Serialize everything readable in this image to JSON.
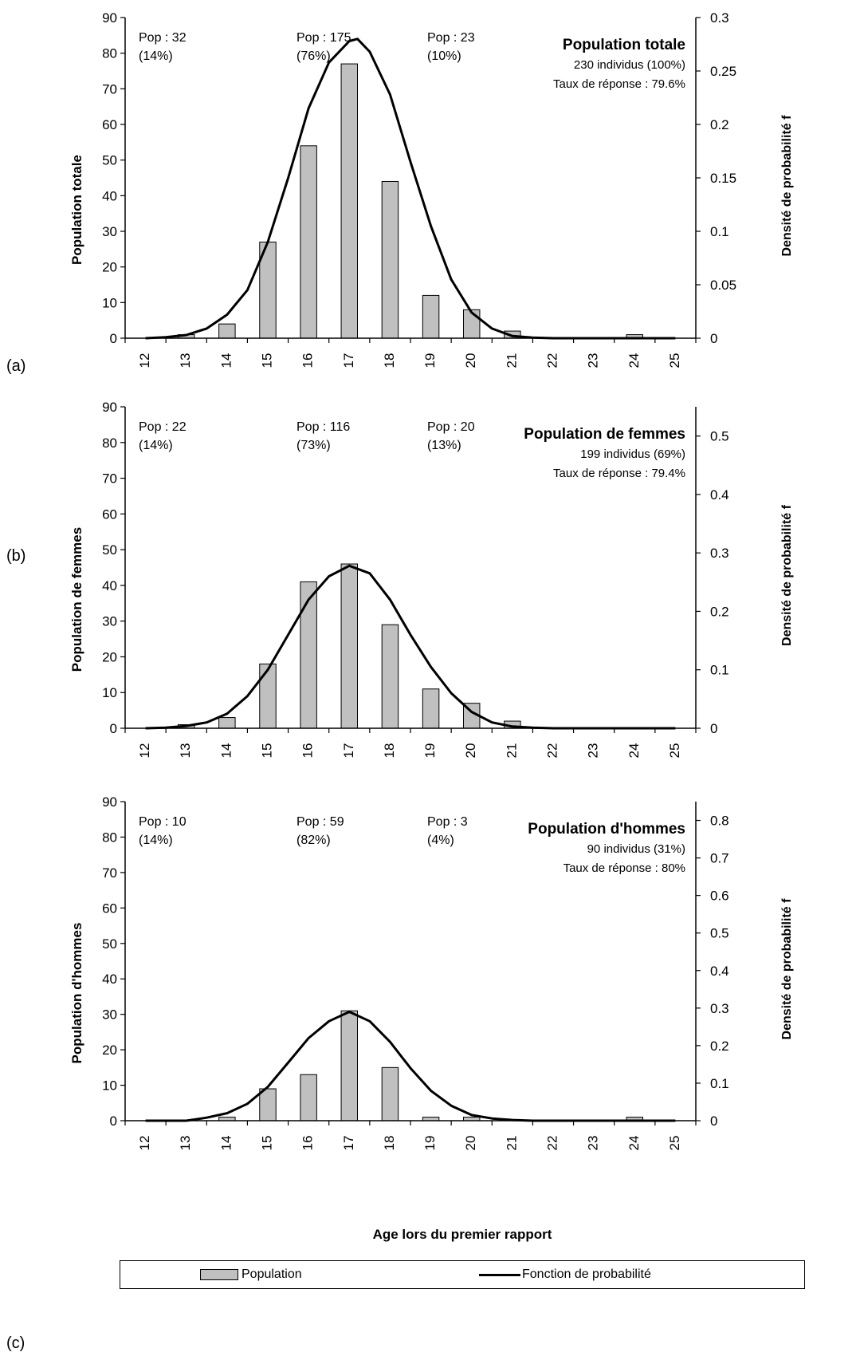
{
  "xlabel": "Age lors du premier rapport",
  "legend": {
    "bar_label": "Population",
    "line_label": "Fonction de probabilité"
  },
  "colors": {
    "bar_fill": "#c0c0c0",
    "bar_stroke": "#000000",
    "line": "#000000"
  },
  "chart_data": [
    {
      "type": "bar",
      "panel_label": "(a)",
      "categories": [
        "12",
        "13",
        "14",
        "15",
        "16",
        "17",
        "18",
        "19",
        "20",
        "21",
        "22",
        "23",
        "24",
        "25"
      ],
      "series": [
        {
          "name": "Population",
          "values": [
            0,
            1,
            4,
            27,
            54,
            77,
            44,
            12,
            8,
            2,
            0,
            0,
            1,
            0
          ]
        },
        {
          "name": "Fonction de probabilité",
          "axis": "right",
          "x": [
            12,
            12.5,
            13,
            13.5,
            14,
            14.5,
            15,
            15.5,
            16,
            16.5,
            17,
            17.2,
            17.5,
            18,
            18.5,
            19,
            19.5,
            20,
            20.5,
            21,
            21.5,
            22,
            23,
            24,
            25
          ],
          "values": [
            0,
            0.001,
            0.003,
            0.009,
            0.022,
            0.045,
            0.09,
            0.15,
            0.215,
            0.258,
            0.278,
            0.28,
            0.268,
            0.228,
            0.165,
            0.105,
            0.055,
            0.024,
            0.009,
            0.002,
            0.0005,
            0,
            0,
            0,
            0
          ]
        }
      ],
      "ylabel": "Population totale",
      "y2label": "Densité de probabilité f",
      "ylim": [
        0,
        90
      ],
      "y2lim": [
        0,
        0.3
      ],
      "yticks": [
        0,
        10,
        20,
        30,
        40,
        50,
        60,
        70,
        80,
        90
      ],
      "y2ticks": [
        "0",
        "0.05",
        "0.1",
        "0.15",
        "0.2",
        "0.25",
        "0.3"
      ],
      "annotations": [
        {
          "line1": "Pop : 32",
          "line2": "(14%)"
        },
        {
          "line1": "Pop : 175",
          "line2": "(76%)"
        },
        {
          "line1": "Pop : 23",
          "line2": "(10%)"
        }
      ],
      "info": {
        "title": "Population totale",
        "count": "230 individus (100%)",
        "rate": "Taux de réponse : 79.6%"
      }
    },
    {
      "type": "bar",
      "panel_label": "(b)",
      "categories": [
        "12",
        "13",
        "14",
        "15",
        "16",
        "17",
        "18",
        "19",
        "20",
        "21",
        "22",
        "23",
        "24",
        "25"
      ],
      "series": [
        {
          "name": "Population",
          "values": [
            0,
            1,
            3,
            18,
            41,
            46,
            29,
            11,
            7,
            2,
            0,
            0,
            0,
            0
          ]
        },
        {
          "name": "Fonction de probabilité",
          "axis": "right",
          "x": [
            12,
            12.5,
            13,
            13.5,
            14,
            14.5,
            15,
            15.5,
            16,
            16.5,
            17,
            17.5,
            18,
            18.5,
            19,
            19.5,
            20,
            20.5,
            21,
            21.5,
            22,
            23,
            24,
            25
          ],
          "values": [
            0,
            0.001,
            0.004,
            0.01,
            0.025,
            0.055,
            0.1,
            0.16,
            0.22,
            0.26,
            0.278,
            0.265,
            0.22,
            0.16,
            0.105,
            0.06,
            0.028,
            0.01,
            0.003,
            0.001,
            0,
            0,
            0,
            0
          ]
        }
      ],
      "ylabel": "Population de femmes",
      "y2label": "Densité de probabilité f",
      "ylim": [
        0,
        90
      ],
      "y2lim": [
        0,
        0.55
      ],
      "yticks": [
        0,
        10,
        20,
        30,
        40,
        50,
        60,
        70,
        80,
        90
      ],
      "y2ticks": [
        "0",
        "0.1",
        "0.2",
        "0.3",
        "0.4",
        "0.5"
      ],
      "annotations": [
        {
          "line1": "Pop : 22",
          "line2": "(14%)"
        },
        {
          "line1": "Pop : 116",
          "line2": "(73%)"
        },
        {
          "line1": "Pop : 20",
          "line2": "(13%)"
        }
      ],
      "info": {
        "title": "Population de femmes",
        "count": "199 individus (69%)",
        "rate": "Taux de réponse : 79.4%"
      }
    },
    {
      "type": "bar",
      "panel_label": "(c)",
      "categories": [
        "12",
        "13",
        "14",
        "15",
        "16",
        "17",
        "18",
        "19",
        "20",
        "21",
        "22",
        "23",
        "24",
        "25"
      ],
      "series": [
        {
          "name": "Population",
          "values": [
            0,
            0,
            1,
            9,
            13,
            31,
            15,
            1,
            1,
            0,
            0,
            0,
            1,
            0
          ]
        },
        {
          "name": "Fonction de probabilité",
          "axis": "right",
          "x": [
            12,
            12.5,
            13,
            13.5,
            14,
            14.5,
            15,
            15.5,
            16,
            16.5,
            17,
            17.5,
            18,
            18.5,
            19,
            19.5,
            20,
            20.5,
            21,
            21.5,
            22,
            23,
            24,
            25
          ],
          "values": [
            0,
            0,
            0,
            0.008,
            0.02,
            0.045,
            0.09,
            0.155,
            0.22,
            0.265,
            0.29,
            0.265,
            0.21,
            0.14,
            0.08,
            0.04,
            0.015,
            0.006,
            0.002,
            0,
            0,
            0,
            0,
            0
          ]
        }
      ],
      "ylabel": "Population d'hommes",
      "y2label": "Densité de probabilité f",
      "ylim": [
        0,
        90
      ],
      "y2lim": [
        0,
        0.85
      ],
      "yticks": [
        0,
        10,
        20,
        30,
        40,
        50,
        60,
        70,
        80,
        90
      ],
      "y2ticks": [
        "0",
        "0.1",
        "0.2",
        "0.3",
        "0.4",
        "0.5",
        "0.6",
        "0.7",
        "0.8"
      ],
      "annotations": [
        {
          "line1": "Pop : 10",
          "line2": "(14%)"
        },
        {
          "line1": "Pop : 59",
          "line2": "(82%)"
        },
        {
          "line1": "Pop : 3",
          "line2": "(4%)"
        }
      ],
      "info": {
        "title": "Population d'hommes",
        "count": "90 individus (31%)",
        "rate": "Taux de réponse : 80%"
      }
    }
  ]
}
